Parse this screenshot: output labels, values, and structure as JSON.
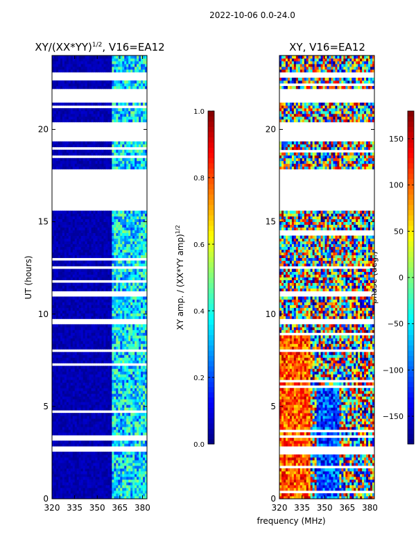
{
  "suptitle": "2022-10-06 0.0-24.0",
  "shared_xlabel": "frequency (MHz)",
  "colors": {
    "jet": [
      "#00007f",
      "#0000ff",
      "#007fff",
      "#00ffff",
      "#7fff7f",
      "#ffff00",
      "#ff7f00",
      "#ff0000",
      "#7f0000"
    ]
  },
  "chart_data": [
    {
      "type": "heatmap",
      "panel": "left",
      "title_prefix": "XY/(XX*YY)",
      "title_sup": "1/2",
      "title_suffix": ", V16=EA12",
      "xlabel": "",
      "ylabel": "UT (hours)",
      "xlim": [
        320,
        383
      ],
      "ylim": [
        0,
        24
      ],
      "xticks": [
        320,
        335,
        350,
        365,
        380
      ],
      "yticks": [
        0,
        5,
        10,
        15,
        20
      ],
      "colorbar": {
        "label_prefix": "XY amp. / (XX*YY amp)",
        "label_sup": "1/2",
        "range": [
          0.0,
          1.0
        ],
        "ticks": [
          0.0,
          0.2,
          0.4,
          0.6,
          0.8,
          1.0
        ],
        "tick_labels": [
          "0.0",
          "0.2",
          "0.4",
          "0.6",
          "0.8",
          "1.0"
        ]
      },
      "data_gaps_hours": [
        [
          15.6,
          17.8
        ],
        [
          19.3,
          20.4
        ],
        [
          21.4,
          22.2
        ],
        [
          22.8,
          23.1
        ],
        [
          11.0,
          11.3
        ],
        [
          9.5,
          9.7
        ],
        [
          7.9,
          8.1
        ],
        [
          3.3,
          3.5
        ],
        [
          2.6,
          2.8
        ]
      ],
      "value_bands": [
        {
          "freq_range": [
            320,
            360
          ],
          "level": 0.05
        },
        {
          "freq_range": [
            360,
            383
          ],
          "level": 0.35
        }
      ]
    },
    {
      "type": "heatmap",
      "panel": "right",
      "title": "XY, V16=EA12",
      "xlabel": "",
      "ylabel": "",
      "xlim": [
        320,
        383
      ],
      "ylim": [
        0,
        24
      ],
      "xticks": [
        320,
        335,
        350,
        365,
        380
      ],
      "yticks": [
        0,
        5,
        10,
        15,
        20
      ],
      "colorbar": {
        "label": "phase (deg.)",
        "range": [
          -180,
          180
        ],
        "ticks": [
          -150,
          -100,
          -50,
          0,
          50,
          100,
          150
        ],
        "tick_labels": [
          "−150",
          "−100",
          "−50",
          "0",
          "50",
          "100",
          "150"
        ]
      },
      "data_gaps_hours": [
        [
          15.6,
          17.8
        ],
        [
          19.3,
          20.4
        ],
        [
          21.4,
          22.2
        ],
        [
          22.8,
          23.1
        ],
        [
          11.0,
          11.3
        ],
        [
          9.5,
          9.7
        ],
        [
          7.9,
          8.1
        ],
        [
          3.3,
          3.5
        ],
        [
          2.6,
          2.8
        ]
      ],
      "value_bands": [
        {
          "freq_range": [
            320,
            383
          ],
          "level_range": [
            -180,
            180
          ]
        }
      ]
    }
  ]
}
